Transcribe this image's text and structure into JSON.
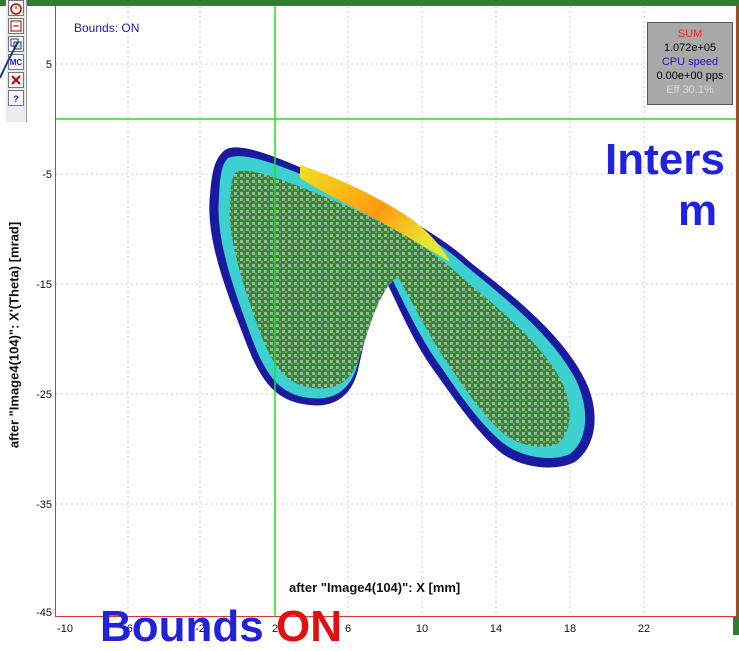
{
  "toolbar": {
    "buttons": [
      {
        "icon": "stopwatch-icon"
      },
      {
        "icon": "document-icon"
      },
      {
        "icon": "copy-icon"
      },
      {
        "icon": "mc-icon",
        "label": "MC"
      },
      {
        "icon": "cancel-icon"
      },
      {
        "icon": "help-icon",
        "label": "?"
      }
    ]
  },
  "plot": {
    "bounds_label": "Bounds: ON",
    "xlabel": "after \"Image4(104)\": X [mm]",
    "ylabel": "after \"Image4(104)\": X'(Theta) [mrad]",
    "x_ticks": [
      "-10",
      "-6",
      "-2",
      "2",
      "6",
      "10",
      "14",
      "18",
      "22"
    ],
    "y_ticks": [
      "5",
      "-5",
      "-15",
      "-25",
      "-35",
      "-45"
    ]
  },
  "stats": {
    "sum_label": "SUM",
    "sum_value": "1.072e+05",
    "cpu_label": "CPU speed",
    "cpu_value": "0.00e+00 pps",
    "eff_label": "Eff   30.1%"
  },
  "slide_overlay": {
    "line1": "Inters",
    "line2": "m",
    "bounds_word": "Bounds",
    "bounds_on": "ON"
  },
  "colors": {
    "frame": "#dd3333",
    "crosshair": "#22dd22",
    "overlay_text": "#2222dd",
    "overlay_on": "#e01010"
  }
}
